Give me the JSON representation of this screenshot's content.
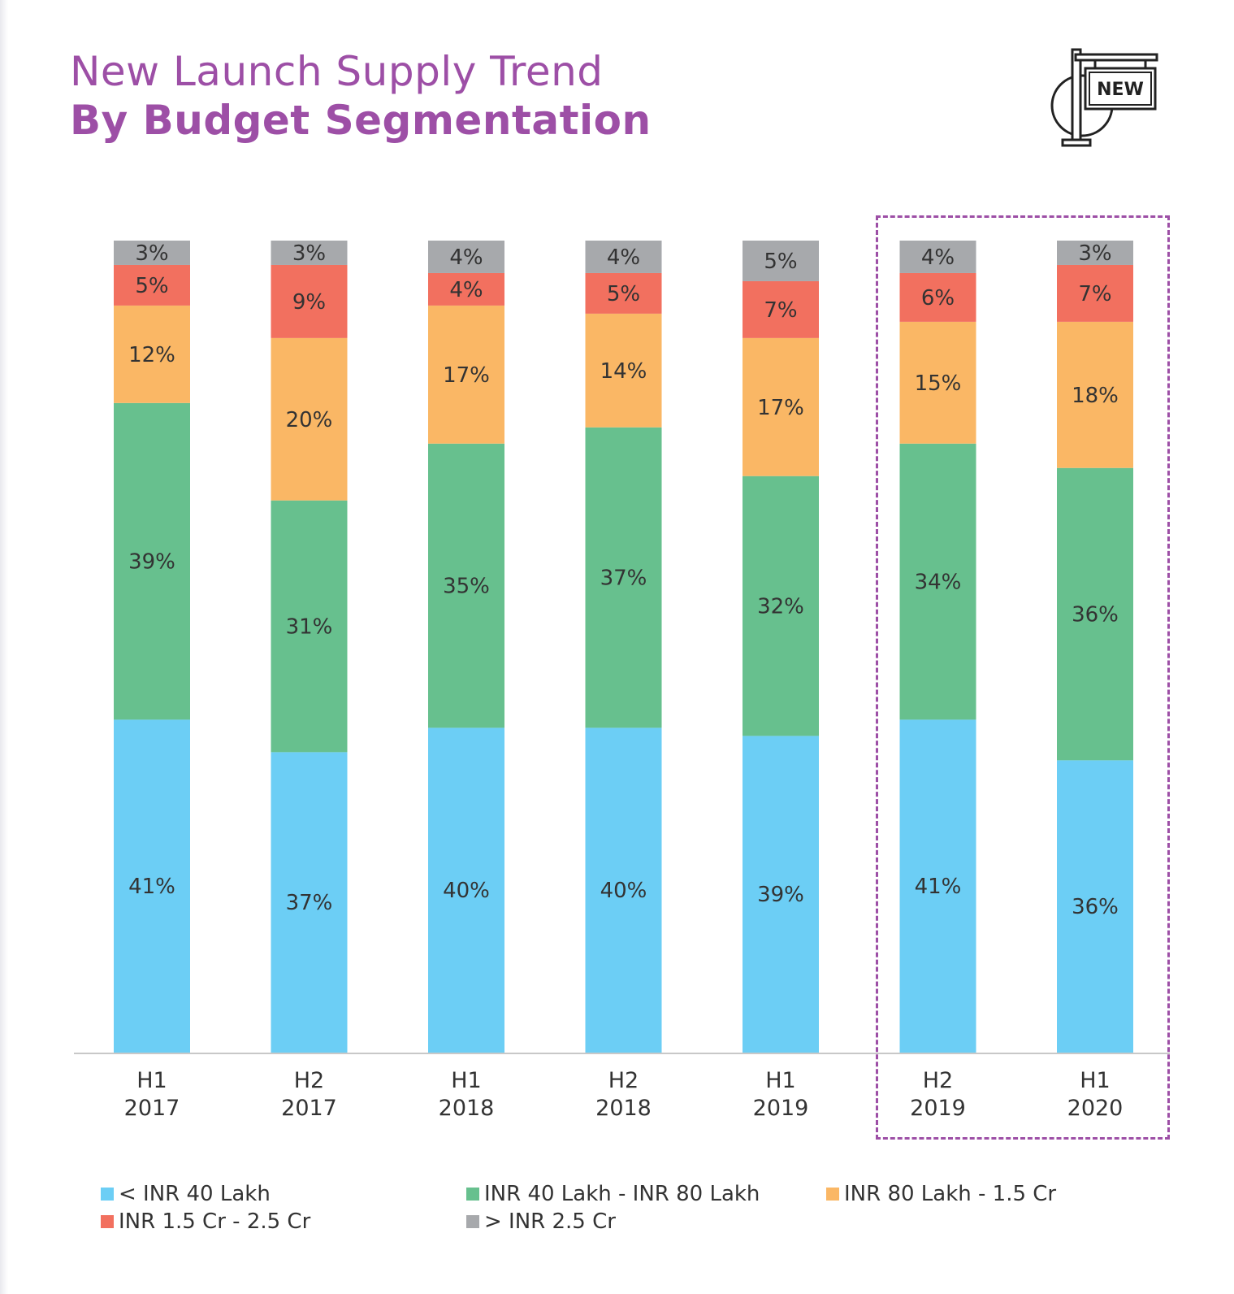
{
  "header": {
    "title_line1": "New Launch Supply Trend",
    "title_line2": "By Budget Segmentation",
    "title_color": "#9d4fa6",
    "icon": "new-sign-icon",
    "icon_label": "NEW"
  },
  "chart_data": {
    "type": "bar",
    "stacked": true,
    "normalized_percent": true,
    "categories": [
      "H1\n2017",
      "H2\n2017",
      "H1\n2018",
      "H2\n2018",
      "H1\n2019",
      "H2\n2019",
      "H1\n2020"
    ],
    "category_lines": [
      [
        "H1",
        "2017"
      ],
      [
        "H2",
        "2017"
      ],
      [
        "H1",
        "2018"
      ],
      [
        "H2",
        "2018"
      ],
      [
        "H1",
        "2019"
      ],
      [
        "H2",
        "2019"
      ],
      [
        "H1",
        "2020"
      ]
    ],
    "series": [
      {
        "name": "< INR 40 Lakh",
        "color": "#6ccef5",
        "values": [
          41,
          37,
          40,
          40,
          39,
          41,
          36
        ]
      },
      {
        "name": "INR 40 Lakh - INR 80 Lakh",
        "color": "#67c08e",
        "values": [
          39,
          31,
          35,
          37,
          32,
          34,
          36
        ]
      },
      {
        "name": "INR 80 Lakh - 1.5 Cr",
        "color": "#fab765",
        "values": [
          12,
          20,
          17,
          14,
          17,
          15,
          18
        ]
      },
      {
        "name": "INR 1.5 Cr - 2.5 Cr",
        "color": "#f2705f",
        "values": [
          5,
          9,
          4,
          5,
          7,
          6,
          7
        ]
      },
      {
        "name": "> INR 2.5 Cr",
        "color": "#a7a9ac",
        "values": [
          3,
          3,
          4,
          4,
          5,
          4,
          3
        ]
      }
    ],
    "data_label_suffix": "%",
    "highlighted_categories": [
      "H2\n2019",
      "H1\n2020"
    ],
    "highlight_color": "#9d4fa6",
    "legend_position": "bottom",
    "grid": false,
    "y_axis_visible": false
  }
}
